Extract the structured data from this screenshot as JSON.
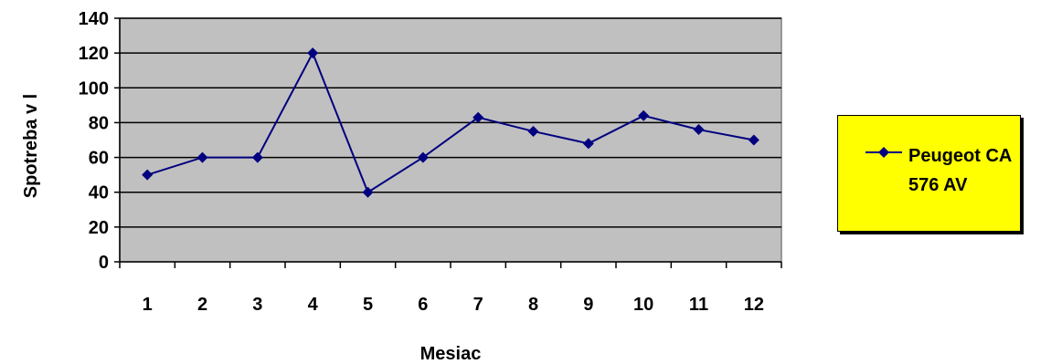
{
  "chart_data": {
    "type": "line",
    "title": "",
    "xlabel": "Mesiac",
    "ylabel": "Spotreba v l",
    "categories": [
      "1",
      "2",
      "3",
      "4",
      "5",
      "6",
      "7",
      "8",
      "9",
      "10",
      "11",
      "12"
    ],
    "series": [
      {
        "name": "Peugeot CA 576 AV",
        "values": [
          50,
          60,
          60,
          120,
          40,
          60,
          83,
          75,
          68,
          84,
          76,
          70
        ],
        "color": "#000080"
      }
    ],
    "ylim": [
      0,
      140
    ],
    "yticks": [
      0,
      20,
      40,
      60,
      80,
      100,
      120,
      140
    ],
    "ytick_labels": [
      "0",
      "20",
      "40",
      "60",
      "80",
      "100",
      "120",
      "140"
    ],
    "grid": true,
    "plot_background": "#c0c0c0",
    "legend": {
      "placement": "right",
      "background": "#ffff00"
    }
  }
}
